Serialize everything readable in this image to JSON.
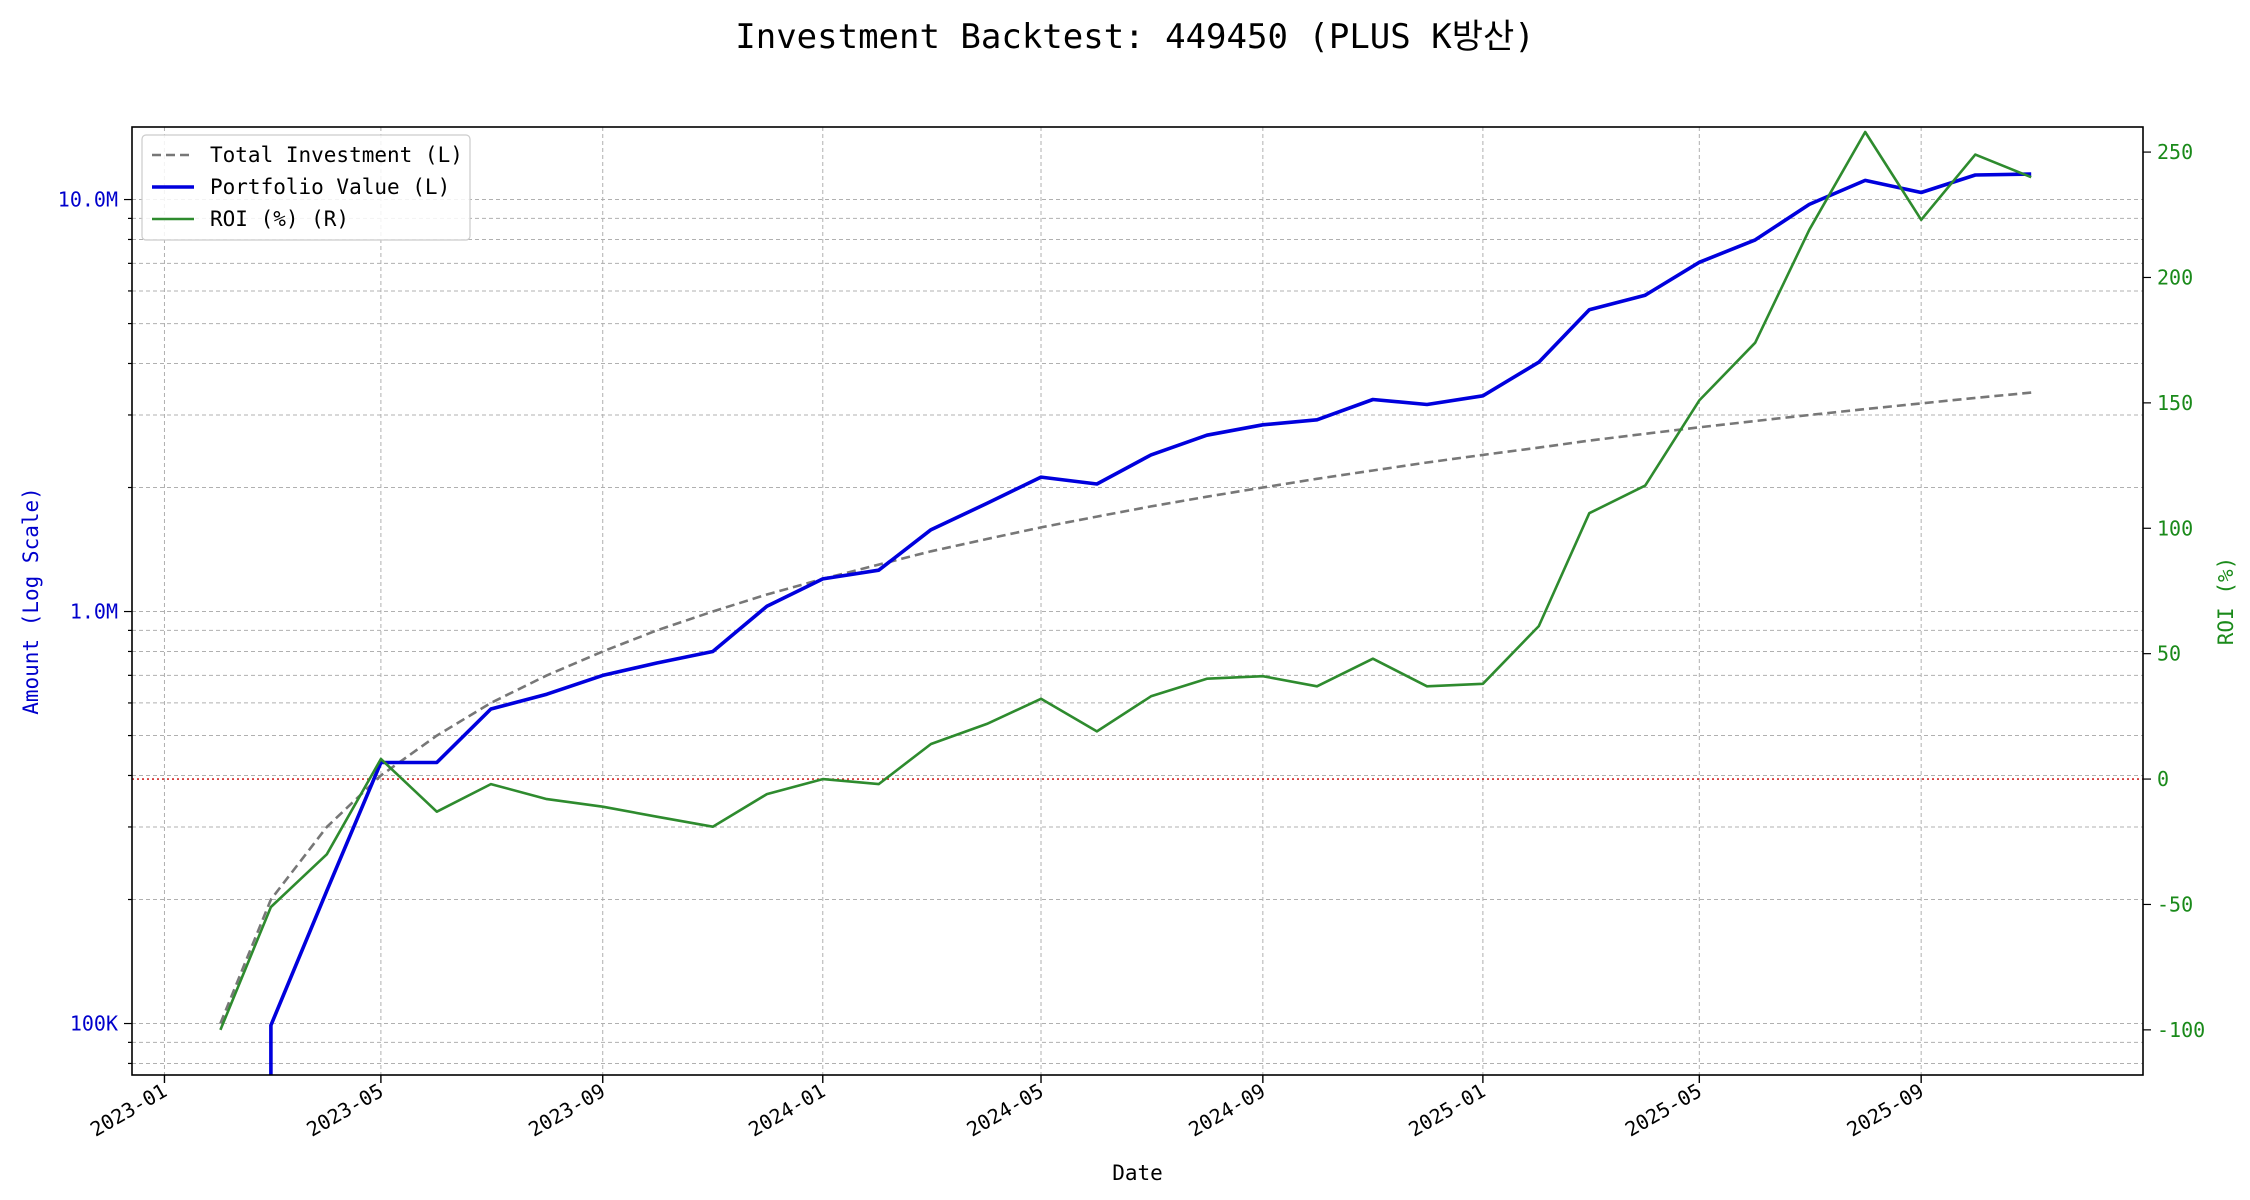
{
  "chart_data": {
    "type": "line",
    "title": "Investment Backtest: 449450 (PLUS K방산)",
    "xlabel": "Date",
    "ylabel_left": "Amount (Log Scale)",
    "ylabel_right": "ROI (%)",
    "left_axis": {
      "scale": "log",
      "ylim": [
        75000,
        15000000
      ],
      "ticks": [
        {
          "value": 100000,
          "label": "100K"
        },
        {
          "value": 1000000,
          "label": "1.0M"
        },
        {
          "value": 10000000,
          "label": "10.0M"
        }
      ],
      "color": "#0000cc"
    },
    "right_axis": {
      "scale": "linear",
      "ylim": [
        -118,
        260
      ],
      "ticks": [
        {
          "value": -100,
          "label": "-100"
        },
        {
          "value": -50,
          "label": "-50"
        },
        {
          "value": 0,
          "label": "0"
        },
        {
          "value": 50,
          "label": "50"
        },
        {
          "value": 100,
          "label": "100"
        },
        {
          "value": 150,
          "label": "150"
        },
        {
          "value": 200,
          "label": "200"
        },
        {
          "value": 250,
          "label": "250"
        }
      ],
      "color": "#1a8a1a"
    },
    "x_axis": {
      "type": "date",
      "xlim": [
        "2022-12-14",
        "2026-01-02"
      ],
      "ticks": [
        "2023-01",
        "2023-05",
        "2023-09",
        "2024-01",
        "2024-05",
        "2024-09",
        "2025-01",
        "2025-05",
        "2025-09"
      ]
    },
    "grid": true,
    "legend_position": "top-left",
    "zero_line": {
      "value": 0,
      "color": "#cc0000"
    },
    "x": [
      "2023-02-01",
      "2023-03-01",
      "2023-04-01",
      "2023-05-01",
      "2023-06-01",
      "2023-07-01",
      "2023-08-01",
      "2023-09-01",
      "2023-10-01",
      "2023-11-01",
      "2023-12-01",
      "2024-01-01",
      "2024-02-01",
      "2024-03-01",
      "2024-04-01",
      "2024-05-01",
      "2024-06-01",
      "2024-07-01",
      "2024-08-01",
      "2024-09-01",
      "2024-10-01",
      "2024-11-01",
      "2024-12-01",
      "2025-01-01",
      "2025-02-01",
      "2025-03-01",
      "2025-04-01",
      "2025-05-01",
      "2025-06-01",
      "2025-07-01",
      "2025-08-01",
      "2025-09-01",
      "2025-10-01",
      "2025-11-01"
    ],
    "series": [
      {
        "name": "Total Investment (L)",
        "axis": "left",
        "style": "dashed",
        "color": "#777777",
        "values": [
          100000,
          200000,
          300000,
          400000,
          500000,
          600000,
          700000,
          800000,
          900000,
          1000000,
          1100000,
          1200000,
          1300000,
          1400000,
          1500000,
          1600000,
          1700000,
          1800000,
          1900000,
          2000000,
          2100000,
          2200000,
          2300000,
          2400000,
          2500000,
          2600000,
          2700000,
          2800000,
          2900000,
          3000000,
          3100000,
          3200000,
          3300000,
          3400000
        ]
      },
      {
        "name": "Portfolio Value (L)",
        "axis": "left",
        "style": "solid",
        "color": "#0000dd",
        "values": [
          null,
          99000,
          210000,
          430000,
          430000,
          580000,
          630000,
          700000,
          750000,
          800000,
          1030000,
          1200000,
          1260000,
          1580000,
          1830000,
          2120000,
          2040000,
          2400000,
          2680000,
          2840000,
          2920000,
          3270000,
          3180000,
          3340000,
          4030000,
          5400000,
          5860000,
          7040000,
          7980000,
          9730000,
          11130000,
          10400000,
          11470000,
          11530000
        ]
      },
      {
        "name": "ROI (%) (R)",
        "axis": "right",
        "style": "solid",
        "color": "#2e8b2e",
        "values": [
          -100,
          -51,
          -30,
          8,
          -13,
          -2,
          -8,
          -11,
          -15,
          -19,
          -6,
          0,
          -2,
          14,
          22,
          32,
          19,
          33,
          40,
          41,
          37,
          48,
          37,
          38,
          61,
          106,
          117,
          151,
          174,
          219,
          258,
          223,
          249,
          240
        ]
      }
    ]
  }
}
